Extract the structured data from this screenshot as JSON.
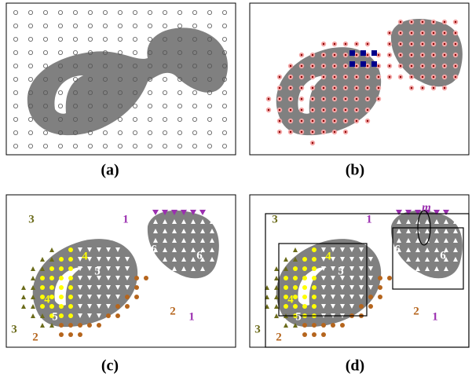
{
  "panels": [
    {
      "caption": "(a)"
    },
    {
      "caption": "(b)"
    },
    {
      "caption": "(c)",
      "labels": [
        "3",
        "1",
        "4",
        "5",
        "6",
        "6",
        "4",
        "5",
        "2",
        "1",
        "3",
        "2"
      ]
    },
    {
      "caption": "(d)",
      "labels": [
        "3",
        "1",
        "4",
        "5",
        "6",
        "6",
        "4",
        "5",
        "2",
        "1",
        "3",
        "2",
        "m"
      ]
    }
  ]
}
